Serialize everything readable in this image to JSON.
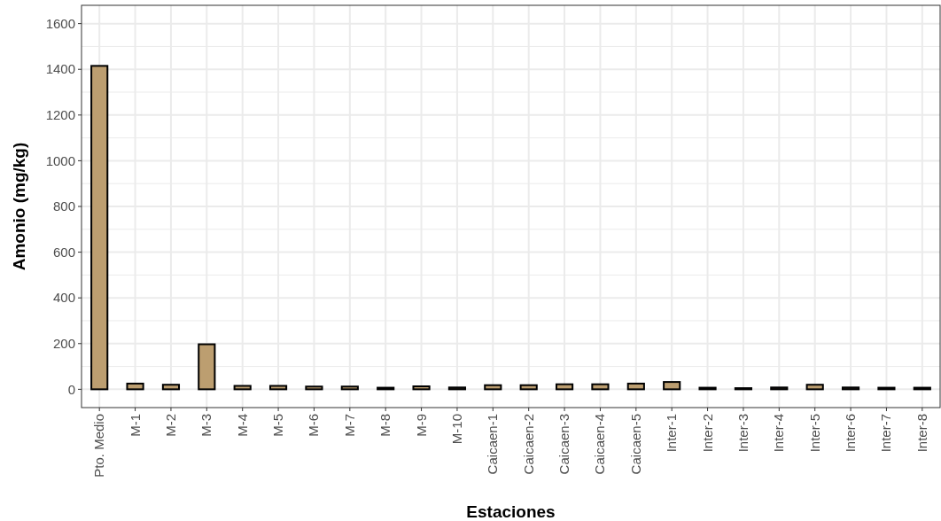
{
  "chart_data": {
    "type": "bar",
    "xlabel": "Estaciones",
    "ylabel": "Amonio (mg/kg)",
    "categories": [
      "Pto. Medio",
      "M-1",
      "M-2",
      "M-3",
      "M-4",
      "M-5",
      "M-6",
      "M-7",
      "M-8",
      "M-9",
      "M-10",
      "Caicaen-1",
      "Caicaen-2",
      "Caicaen-3",
      "Caicaen-4",
      "Caicaen-5",
      "Inter-1",
      "Inter-2",
      "Inter-3",
      "Inter-4",
      "Inter-5",
      "Inter-6",
      "Inter-7",
      "Inter-8"
    ],
    "values": [
      1415,
      25,
      20,
      197,
      15,
      15,
      12,
      12,
      7,
      13,
      8,
      18,
      18,
      22,
      22,
      25,
      32,
      7,
      5,
      8,
      20,
      8,
      7,
      7
    ],
    "color": "#bc9e70",
    "ylim": [
      -80,
      1680
    ],
    "yticks": [
      0,
      200,
      400,
      600,
      800,
      1000,
      1200,
      1400,
      1600
    ],
    "grid": true
  }
}
